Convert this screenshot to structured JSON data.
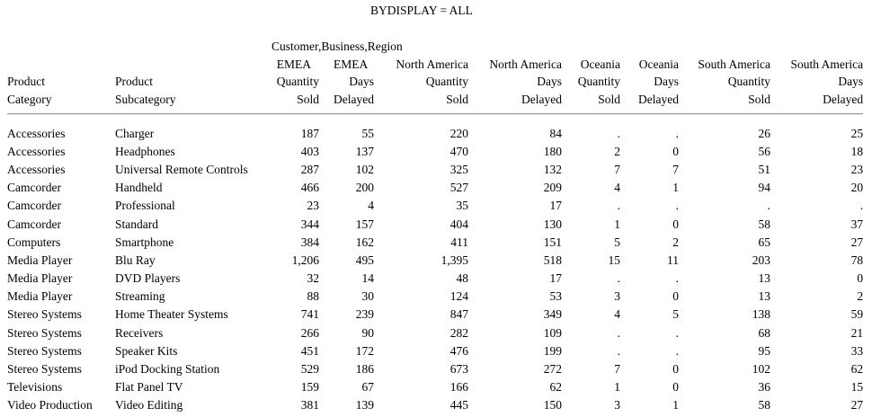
{
  "title": "BYDISPLAY = ALL",
  "report": {
    "spanning_header": "Customer,Business,Region",
    "missing_value_symbol": ".",
    "columns": [
      {
        "id": "product-category",
        "lines": [
          "Product",
          "Category"
        ]
      },
      {
        "id": "product-subcategory",
        "lines": [
          "Product",
          "Subcategory"
        ]
      },
      {
        "id": "emea-quantity-sold",
        "lines": [
          "EMEA",
          "Quantity",
          "Sold"
        ]
      },
      {
        "id": "emea-days-delayed",
        "lines": [
          "EMEA",
          "Days",
          "Delayed"
        ]
      },
      {
        "id": "north-america-quantity-sold",
        "lines": [
          "North America",
          "Quantity",
          "Sold"
        ]
      },
      {
        "id": "north-america-days-delayed",
        "lines": [
          "North America",
          "Days",
          "Delayed"
        ]
      },
      {
        "id": "oceania-quantity-sold",
        "lines": [
          "Oceania",
          "Quantity",
          "Sold"
        ]
      },
      {
        "id": "oceania-days-delayed",
        "lines": [
          "Oceania",
          "Days",
          "Delayed"
        ]
      },
      {
        "id": "south-america-quantity-sold",
        "lines": [
          "South America",
          "Quantity",
          "Sold"
        ]
      },
      {
        "id": "south-america-days-delayed",
        "lines": [
          "South America",
          "Days",
          "Delayed"
        ]
      }
    ],
    "rows": [
      [
        "Accessories",
        "Charger",
        "187",
        "55",
        "220",
        "84",
        ".",
        ".",
        "26",
        "25"
      ],
      [
        "Accessories",
        "Headphones",
        "403",
        "137",
        "470",
        "180",
        "2",
        "0",
        "56",
        "18"
      ],
      [
        "Accessories",
        "Universal Remote Controls",
        "287",
        "102",
        "325",
        "132",
        "7",
        "7",
        "51",
        "23"
      ],
      [
        "Camcorder",
        "Handheld",
        "466",
        "200",
        "527",
        "209",
        "4",
        "1",
        "94",
        "20"
      ],
      [
        "Camcorder",
        "Professional",
        "23",
        "4",
        "35",
        "17",
        ".",
        ".",
        ".",
        "."
      ],
      [
        "Camcorder",
        "Standard",
        "344",
        "157",
        "404",
        "130",
        "1",
        "0",
        "58",
        "37"
      ],
      [
        "Computers",
        "Smartphone",
        "384",
        "162",
        "411",
        "151",
        "5",
        "2",
        "65",
        "27"
      ],
      [
        "Media Player",
        "Blu Ray",
        "1,206",
        "495",
        "1,395",
        "518",
        "15",
        "11",
        "203",
        "78"
      ],
      [
        "Media Player",
        "DVD Players",
        "32",
        "14",
        "48",
        "17",
        ".",
        ".",
        "13",
        "0"
      ],
      [
        "Media Player",
        "Streaming",
        "88",
        "30",
        "124",
        "53",
        "3",
        "0",
        "13",
        "2"
      ],
      [
        "Stereo Systems",
        "Home Theater Systems",
        "741",
        "239",
        "847",
        "349",
        "4",
        "5",
        "138",
        "59"
      ],
      [
        "Stereo Systems",
        "Receivers",
        "266",
        "90",
        "282",
        "109",
        ".",
        ".",
        "68",
        "21"
      ],
      [
        "Stereo Systems",
        "Speaker Kits",
        "451",
        "172",
        "476",
        "199",
        ".",
        ".",
        "95",
        "33"
      ],
      [
        "Stereo Systems",
        "iPod Docking Station",
        "529",
        "186",
        "673",
        "272",
        "7",
        "0",
        "102",
        "62"
      ],
      [
        "Televisions",
        "Flat Panel TV",
        "159",
        "67",
        "166",
        "62",
        "1",
        "0",
        "36",
        "15"
      ],
      [
        "Video Production",
        "Video Editing",
        "381",
        "139",
        "445",
        "150",
        "3",
        "1",
        "58",
        "27"
      ]
    ],
    "colors": {
      "text": "#000000",
      "rule_dark": "#9a9a96",
      "rule_light": "#e4e4e0",
      "background": "#ffffff"
    }
  }
}
